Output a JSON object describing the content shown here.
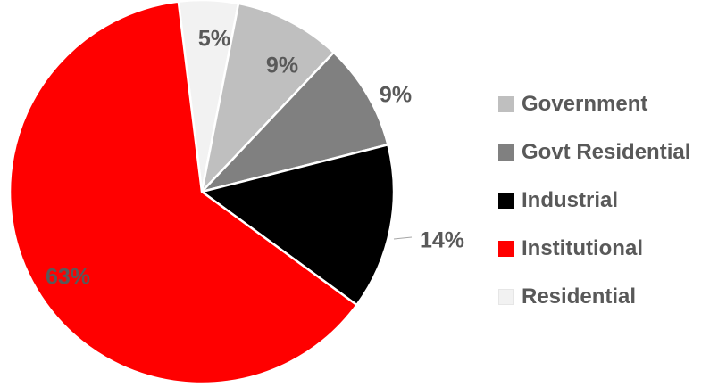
{
  "chart_data": {
    "type": "pie",
    "title": "",
    "legend_position": "right",
    "slices": [
      {
        "name": "Residential",
        "value": 5,
        "label": "5%",
        "color": "#f2f2f2",
        "label_color": "#595959"
      },
      {
        "name": "Government",
        "value": 9,
        "label": "9%",
        "color": "#bfbfbf",
        "label_color": "#595959"
      },
      {
        "name": "Govt Residential",
        "value": 9,
        "label": "9%",
        "color": "#808080",
        "label_color": "#595959"
      },
      {
        "name": "Industrial",
        "value": 14,
        "label": "14%",
        "color": "#000000",
        "label_color": "#595959"
      },
      {
        "name": "Institutional",
        "value": 63,
        "label": "63%",
        "color": "#ff0000",
        "label_color": "#595959"
      }
    ],
    "legend": [
      {
        "name": "Government",
        "color": "#bfbfbf"
      },
      {
        "name": "Govt Residential",
        "color": "#808080"
      },
      {
        "name": "Industrial",
        "color": "#000000"
      },
      {
        "name": "Institutional",
        "color": "#ff0000"
      },
      {
        "name": "Residential",
        "color": "#f2f2f2"
      }
    ]
  }
}
